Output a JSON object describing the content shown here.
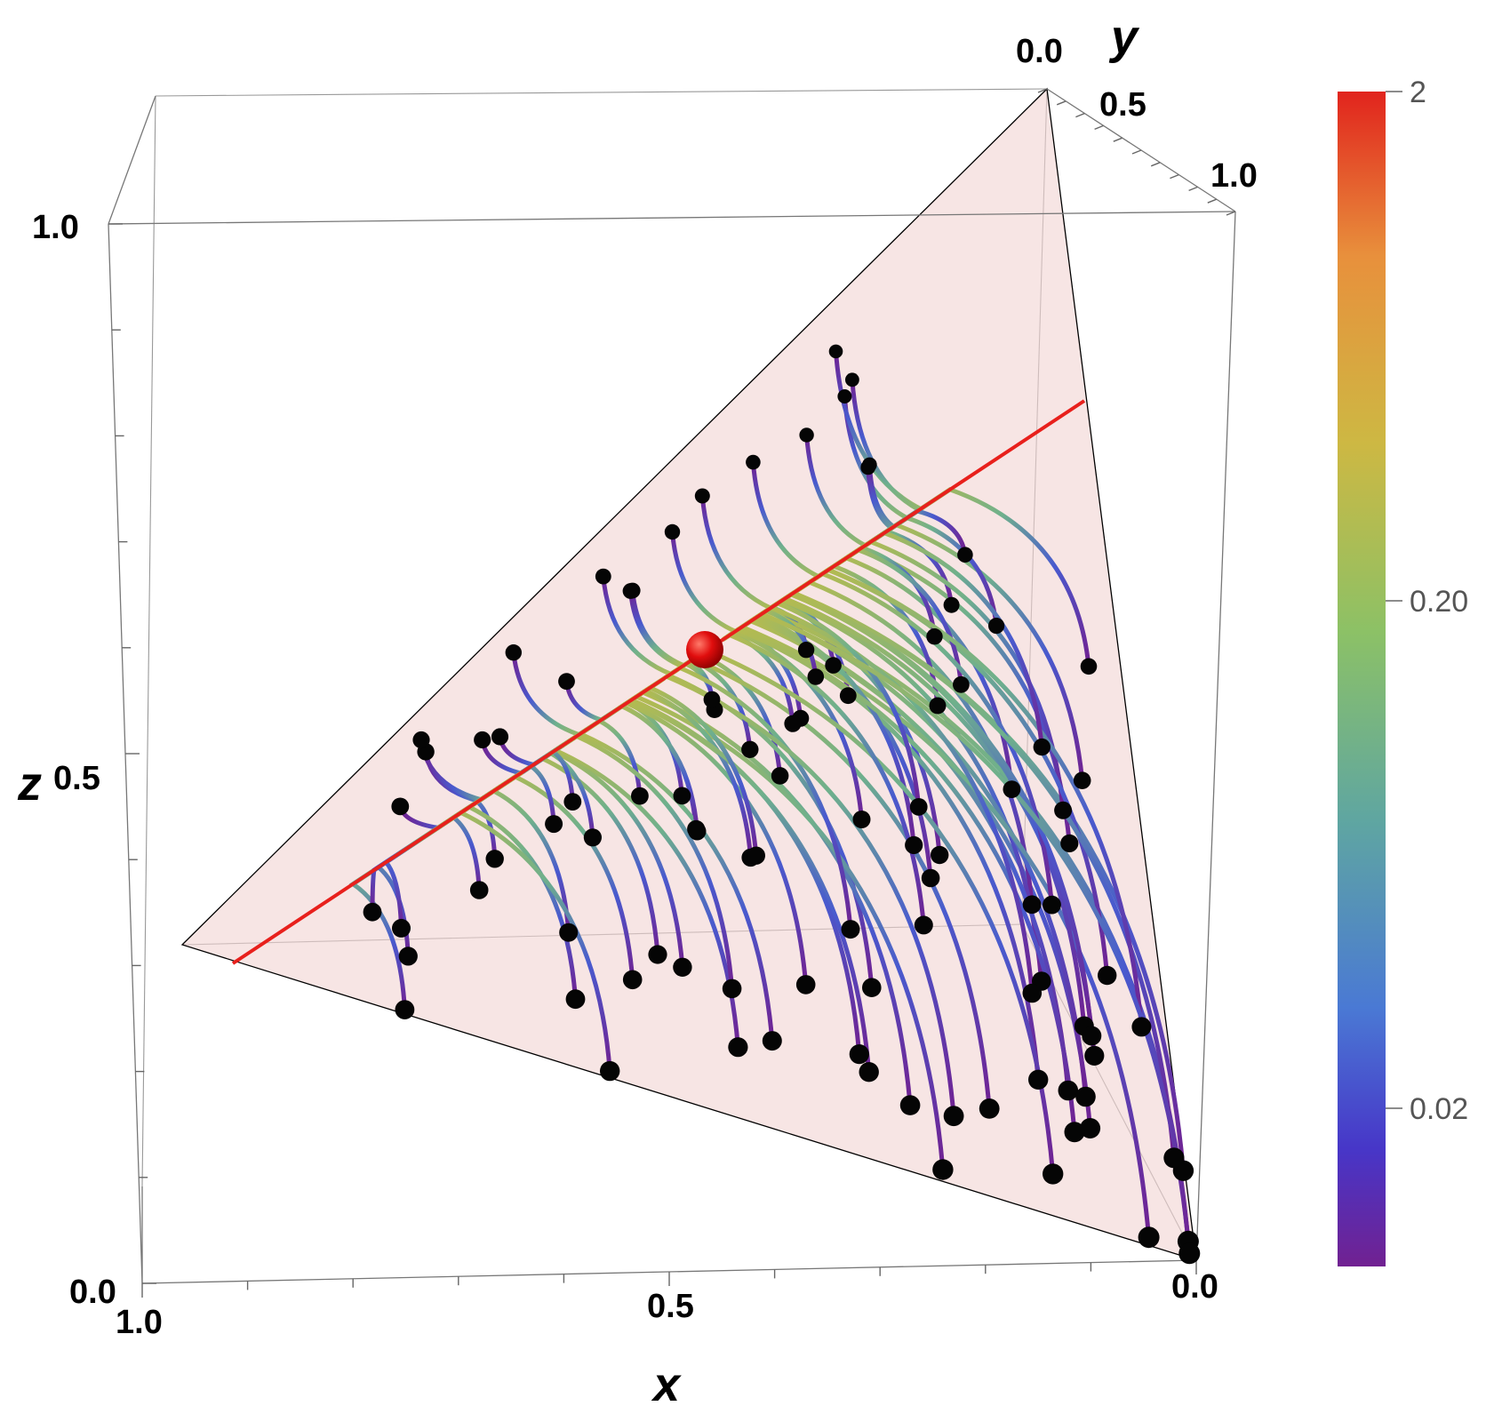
{
  "chart_data": {
    "type": "3d-stream",
    "axes": {
      "x": {
        "label": "x",
        "ticks": [
          "1.0",
          "0.5",
          "0.0"
        ],
        "range": [
          0,
          1
        ]
      },
      "y": {
        "label": "y",
        "ticks": [
          "0.0",
          "0.5",
          "1.0"
        ],
        "range": [
          0,
          1
        ]
      },
      "z": {
        "label": "z",
        "ticks": [
          "0.0",
          "0.5",
          "1.0"
        ],
        "range": [
          0,
          1
        ]
      }
    },
    "simplex_plane": "x + y + z = 1",
    "equilibrium_point": {
      "color": "#e01010"
    },
    "invariant_line_color": "#e8201c",
    "colorbar": {
      "ticks": [
        "2",
        "0.20",
        "0.02"
      ],
      "colors": [
        "#e1241d",
        "#e8903c",
        "#cdb843",
        "#8cc166",
        "#5fa6a1",
        "#4a79d4",
        "#4736c8",
        "#712191"
      ]
    },
    "trajectory_count": 100
  }
}
